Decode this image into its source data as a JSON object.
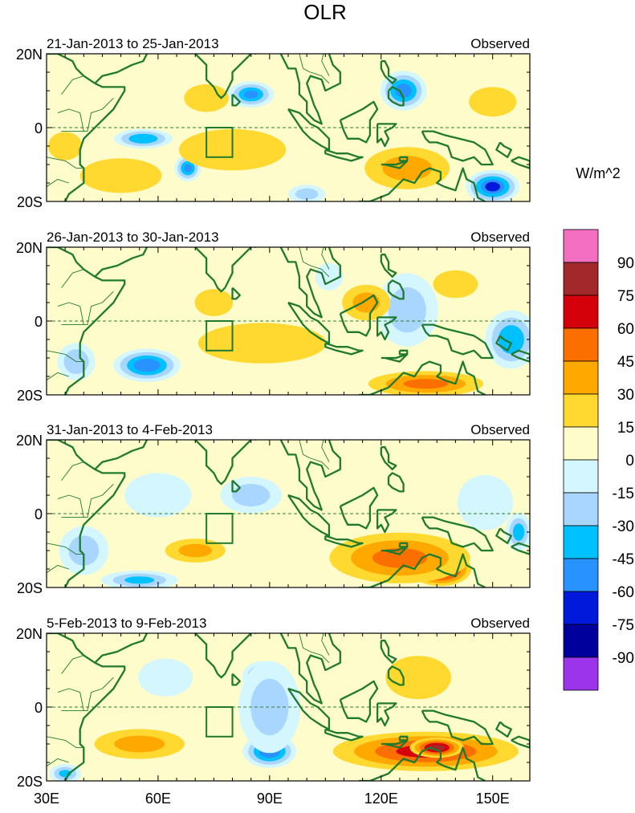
{
  "title": "OLR",
  "colorbar": {
    "units_label": "W/m^2",
    "tick_labels": [
      "90",
      "75",
      "60",
      "45",
      "30",
      "15",
      "0",
      "-15",
      "-30",
      "-45",
      "-60",
      "-75",
      "-90"
    ],
    "colors": [
      "#f46fc2",
      "#a3282b",
      "#d4000a",
      "#fb6e00",
      "#ffa800",
      "#ffd930",
      "#fffccc",
      "#d4f6ff",
      "#a9d6ff",
      "#00c1ff",
      "#2892ff",
      "#0019da",
      "#00009c",
      "#9b34eb"
    ]
  },
  "chart_data": {
    "type": "contour-map",
    "variable": "OLR anomaly",
    "units": "W/m^2",
    "levels": [
      -90,
      -75,
      -60,
      -45,
      -30,
      -15,
      0,
      15,
      30,
      45,
      60,
      75,
      90
    ],
    "lon_range": [
      30,
      160
    ],
    "lat_range": [
      -20,
      20
    ],
    "x_tick_labels": [
      "30E",
      "60E",
      "90E",
      "120E",
      "150E"
    ],
    "x_ticks_deg": [
      30,
      60,
      90,
      120,
      150
    ],
    "y_tick_labels": [
      "20N",
      "0",
      "20S"
    ],
    "y_ticks_deg": [
      20,
      0,
      -20
    ],
    "box": {
      "lon": [
        73,
        80
      ],
      "lat": [
        -8,
        0
      ]
    },
    "panels": [
      {
        "date_label": "21-Jan-2013 to 25-Jan-2013",
        "right_label": "Observed",
        "blobs": [
          {
            "lon": 85,
            "lat": 9,
            "value": -60,
            "rx": 7,
            "ry": 4
          },
          {
            "lon": 56,
            "lat": -3,
            "value": -55,
            "rx": 9,
            "ry": 3
          },
          {
            "lon": 68,
            "lat": -11,
            "value": -60,
            "rx": 4,
            "ry": 4
          },
          {
            "lon": 126,
            "lat": 10,
            "value": -65,
            "rx": 7,
            "ry": 6
          },
          {
            "lon": 150,
            "lat": -16,
            "value": -75,
            "rx": 8,
            "ry": 5
          },
          {
            "lon": 100,
            "lat": -18,
            "value": -35,
            "rx": 6,
            "ry": 3
          },
          {
            "lon": 80,
            "lat": -6,
            "value": 28,
            "rx": 18,
            "ry": 7
          },
          {
            "lon": 50,
            "lat": -13,
            "value": 25,
            "rx": 14,
            "ry": 6
          },
          {
            "lon": 73,
            "lat": 8,
            "value": 20,
            "rx": 8,
            "ry": 5
          },
          {
            "lon": 127,
            "lat": -11,
            "value": 32,
            "rx": 14,
            "ry": 7
          },
          {
            "lon": 150,
            "lat": 7,
            "value": 28,
            "rx": 8,
            "ry": 5
          },
          {
            "lon": 35,
            "lat": -5,
            "value": 22,
            "rx": 6,
            "ry": 5
          }
        ]
      },
      {
        "date_label": "26-Jan-2013 to 30-Jan-2013",
        "right_label": "Observed",
        "blobs": [
          {
            "lon": 57,
            "lat": -12,
            "value": -70,
            "rx": 10,
            "ry": 5
          },
          {
            "lon": 38,
            "lat": -11,
            "value": -40,
            "rx": 6,
            "ry": 6
          },
          {
            "lon": 127,
            "lat": 3,
            "value": -35,
            "rx": 10,
            "ry": 12
          },
          {
            "lon": 155,
            "lat": -5,
            "value": -55,
            "rx": 8,
            "ry": 9
          },
          {
            "lon": 106,
            "lat": 12,
            "value": -20,
            "rx": 5,
            "ry": 5
          },
          {
            "lon": 88,
            "lat": -6,
            "value": 25,
            "rx": 22,
            "ry": 7
          },
          {
            "lon": 132,
            "lat": -17,
            "value": 45,
            "rx": 18,
            "ry": 4
          },
          {
            "lon": 116,
            "lat": 5,
            "value": 30,
            "rx": 8,
            "ry": 6
          },
          {
            "lon": 75,
            "lat": 5,
            "value": 18,
            "rx": 7,
            "ry": 5
          },
          {
            "lon": 140,
            "lat": 10,
            "value": 20,
            "rx": 8,
            "ry": 5
          }
        ]
      },
      {
        "date_label": "31-Jan-2013 to 4-Feb-2013",
        "right_label": "Observed",
        "blobs": [
          {
            "lon": 136,
            "lat": -15,
            "value": 88,
            "rx": 9,
            "ry": 5
          },
          {
            "lon": 125,
            "lat": -12,
            "value": 45,
            "rx": 22,
            "ry": 8
          },
          {
            "lon": 70,
            "lat": -10,
            "value": 30,
            "rx": 10,
            "ry": 4
          },
          {
            "lon": 55,
            "lat": -18,
            "value": -45,
            "rx": 12,
            "ry": 3
          },
          {
            "lon": 40,
            "lat": -10,
            "value": -35,
            "rx": 8,
            "ry": 8
          },
          {
            "lon": 85,
            "lat": 5,
            "value": -35,
            "rx": 10,
            "ry": 6
          },
          {
            "lon": 157,
            "lat": -5,
            "value": -50,
            "rx": 4,
            "ry": 6
          },
          {
            "lon": 148,
            "lat": 3,
            "value": -20,
            "rx": 10,
            "ry": 10
          },
          {
            "lon": 60,
            "lat": 5,
            "value": -20,
            "rx": 12,
            "ry": 8
          }
        ]
      },
      {
        "date_label": "5-Feb-2013 to 9-Feb-2013",
        "right_label": "Observed",
        "blobs": [
          {
            "lon": 90,
            "lat": -12,
            "value": -70,
            "rx": 8,
            "ry": 5
          },
          {
            "lon": 88,
            "lat": 8,
            "value": -60,
            "rx": 6,
            "ry": 5
          },
          {
            "lon": 90,
            "lat": 0,
            "value": -35,
            "rx": 10,
            "ry": 15
          },
          {
            "lon": 132,
            "lat": -12,
            "value": 62,
            "rx": 28,
            "ry": 6
          },
          {
            "lon": 135,
            "lat": -11,
            "value": 80,
            "rx": 8,
            "ry": 3
          },
          {
            "lon": 55,
            "lat": -10,
            "value": 30,
            "rx": 15,
            "ry": 5
          },
          {
            "lon": 35,
            "lat": -18,
            "value": -45,
            "rx": 5,
            "ry": 3
          },
          {
            "lon": 130,
            "lat": 8,
            "value": 18,
            "rx": 12,
            "ry": 8
          },
          {
            "lon": 62,
            "lat": 8,
            "value": -18,
            "rx": 10,
            "ry": 7
          }
        ]
      }
    ]
  }
}
